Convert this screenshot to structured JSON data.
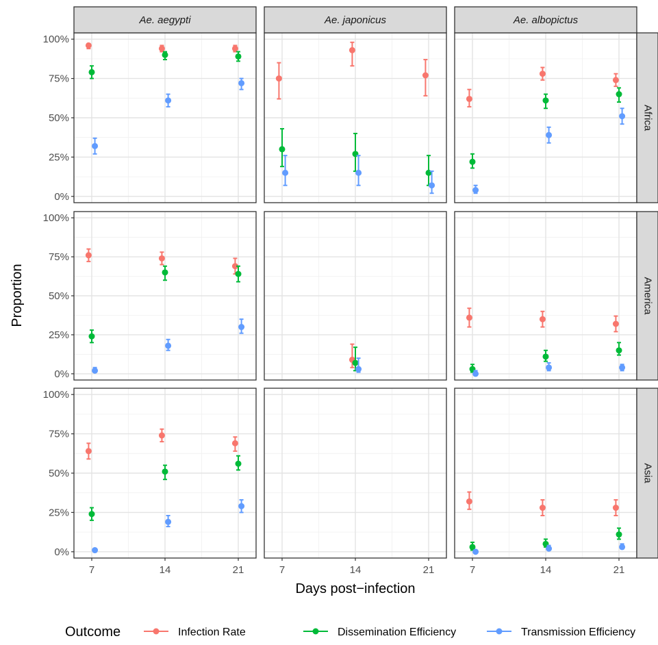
{
  "chart_data": {
    "type": "scatter",
    "xlabel": "Days post−infection",
    "ylabel": "Proportion",
    "x_ticks": [
      "7",
      "14",
      "21"
    ],
    "y_ticks": [
      "0%",
      "25%",
      "50%",
      "75%",
      "100%"
    ],
    "x_range": [
      5.3,
      22.7
    ],
    "y_range": [
      -0.04,
      1.04
    ],
    "columns": [
      "Ae. aegypti",
      "Ae. japonicus",
      "Ae. albopictus"
    ],
    "rows": [
      "Africa",
      "America",
      "Asia"
    ],
    "legend": {
      "title": "Outcome",
      "position": "bottom",
      "entries": [
        "Infection Rate",
        "Dissemination Efficiency",
        "Transmission Efficiency"
      ]
    },
    "series": [
      {
        "name": "Infection Rate",
        "color": "#F8766D",
        "offset": -0.3
      },
      {
        "name": "Dissemination Efficiency",
        "color": "#00BA38",
        "offset": 0
      },
      {
        "name": "Transmission Efficiency",
        "color": "#619CFF",
        "offset": 0.3
      }
    ],
    "grid": true,
    "panels": [
      {
        "col": 0,
        "row": 0,
        "points": [
          {
            "series": 0,
            "x": 7,
            "y": 0.96,
            "lo": 0.94,
            "hi": 0.97
          },
          {
            "series": 1,
            "x": 7,
            "y": 0.79,
            "lo": 0.75,
            "hi": 0.83
          },
          {
            "series": 2,
            "x": 7,
            "y": 0.32,
            "lo": 0.27,
            "hi": 0.37
          },
          {
            "series": 0,
            "x": 14,
            "y": 0.94,
            "lo": 0.92,
            "hi": 0.96
          },
          {
            "series": 1,
            "x": 14,
            "y": 0.9,
            "lo": 0.87,
            "hi": 0.92
          },
          {
            "series": 2,
            "x": 14,
            "y": 0.61,
            "lo": 0.57,
            "hi": 0.65
          },
          {
            "series": 0,
            "x": 21,
            "y": 0.94,
            "lo": 0.92,
            "hi": 0.96
          },
          {
            "series": 1,
            "x": 21,
            "y": 0.89,
            "lo": 0.86,
            "hi": 0.92
          },
          {
            "series": 2,
            "x": 21,
            "y": 0.72,
            "lo": 0.68,
            "hi": 0.75
          }
        ]
      },
      {
        "col": 1,
        "row": 0,
        "points": [
          {
            "series": 0,
            "x": 7,
            "y": 0.75,
            "lo": 0.62,
            "hi": 0.85
          },
          {
            "series": 1,
            "x": 7,
            "y": 0.3,
            "lo": 0.19,
            "hi": 0.43
          },
          {
            "series": 2,
            "x": 7,
            "y": 0.15,
            "lo": 0.07,
            "hi": 0.26
          },
          {
            "series": 0,
            "x": 14,
            "y": 0.93,
            "lo": 0.83,
            "hi": 0.98
          },
          {
            "series": 1,
            "x": 14,
            "y": 0.27,
            "lo": 0.16,
            "hi": 0.4
          },
          {
            "series": 2,
            "x": 14,
            "y": 0.15,
            "lo": 0.07,
            "hi": 0.26
          },
          {
            "series": 0,
            "x": 21,
            "y": 0.77,
            "lo": 0.64,
            "hi": 0.87
          },
          {
            "series": 1,
            "x": 21,
            "y": 0.15,
            "lo": 0.07,
            "hi": 0.26
          },
          {
            "series": 2,
            "x": 21,
            "y": 0.07,
            "lo": 0.02,
            "hi": 0.16
          }
        ]
      },
      {
        "col": 2,
        "row": 0,
        "points": [
          {
            "series": 0,
            "x": 7,
            "y": 0.62,
            "lo": 0.57,
            "hi": 0.68
          },
          {
            "series": 1,
            "x": 7,
            "y": 0.22,
            "lo": 0.18,
            "hi": 0.27
          },
          {
            "series": 2,
            "x": 7,
            "y": 0.04,
            "lo": 0.02,
            "hi": 0.07
          },
          {
            "series": 0,
            "x": 14,
            "y": 0.78,
            "lo": 0.74,
            "hi": 0.82
          },
          {
            "series": 1,
            "x": 14,
            "y": 0.61,
            "lo": 0.56,
            "hi": 0.65
          },
          {
            "series": 2,
            "x": 14,
            "y": 0.39,
            "lo": 0.34,
            "hi": 0.44
          },
          {
            "series": 0,
            "x": 21,
            "y": 0.74,
            "lo": 0.7,
            "hi": 0.78
          },
          {
            "series": 1,
            "x": 21,
            "y": 0.65,
            "lo": 0.6,
            "hi": 0.69
          },
          {
            "series": 2,
            "x": 21,
            "y": 0.51,
            "lo": 0.46,
            "hi": 0.56
          }
        ]
      },
      {
        "col": 0,
        "row": 1,
        "points": [
          {
            "series": 0,
            "x": 7,
            "y": 0.76,
            "lo": 0.72,
            "hi": 0.8
          },
          {
            "series": 1,
            "x": 7,
            "y": 0.24,
            "lo": 0.2,
            "hi": 0.28
          },
          {
            "series": 2,
            "x": 7,
            "y": 0.02,
            "lo": 0.01,
            "hi": 0.04
          },
          {
            "series": 0,
            "x": 14,
            "y": 0.74,
            "lo": 0.7,
            "hi": 0.78
          },
          {
            "series": 1,
            "x": 14,
            "y": 0.65,
            "lo": 0.6,
            "hi": 0.69
          },
          {
            "series": 2,
            "x": 14,
            "y": 0.18,
            "lo": 0.15,
            "hi": 0.22
          },
          {
            "series": 0,
            "x": 21,
            "y": 0.69,
            "lo": 0.64,
            "hi": 0.74
          },
          {
            "series": 1,
            "x": 21,
            "y": 0.64,
            "lo": 0.59,
            "hi": 0.69
          },
          {
            "series": 2,
            "x": 21,
            "y": 0.3,
            "lo": 0.26,
            "hi": 0.35
          }
        ]
      },
      {
        "col": 1,
        "row": 1,
        "points": [
          {
            "series": 0,
            "x": 14,
            "y": 0.09,
            "lo": 0.04,
            "hi": 0.19
          },
          {
            "series": 1,
            "x": 14,
            "y": 0.07,
            "lo": 0.02,
            "hi": 0.17
          },
          {
            "series": 2,
            "x": 14,
            "y": 0.03,
            "lo": 0.01,
            "hi": 0.1
          }
        ]
      },
      {
        "col": 2,
        "row": 1,
        "points": [
          {
            "series": 0,
            "x": 7,
            "y": 0.36,
            "lo": 0.3,
            "hi": 0.42
          },
          {
            "series": 1,
            "x": 7,
            "y": 0.03,
            "lo": 0.01,
            "hi": 0.06
          },
          {
            "series": 2,
            "x": 7,
            "y": 0.0,
            "lo": 0.0,
            "hi": 0.02
          },
          {
            "series": 0,
            "x": 14,
            "y": 0.35,
            "lo": 0.3,
            "hi": 0.4
          },
          {
            "series": 1,
            "x": 14,
            "y": 0.11,
            "lo": 0.08,
            "hi": 0.15
          },
          {
            "series": 2,
            "x": 14,
            "y": 0.04,
            "lo": 0.02,
            "hi": 0.07
          },
          {
            "series": 0,
            "x": 21,
            "y": 0.32,
            "lo": 0.27,
            "hi": 0.37
          },
          {
            "series": 1,
            "x": 21,
            "y": 0.15,
            "lo": 0.12,
            "hi": 0.2
          },
          {
            "series": 2,
            "x": 21,
            "y": 0.04,
            "lo": 0.02,
            "hi": 0.06
          }
        ]
      },
      {
        "col": 0,
        "row": 2,
        "points": [
          {
            "series": 0,
            "x": 7,
            "y": 0.64,
            "lo": 0.59,
            "hi": 0.69
          },
          {
            "series": 1,
            "x": 7,
            "y": 0.24,
            "lo": 0.2,
            "hi": 0.28
          },
          {
            "series": 2,
            "x": 7,
            "y": 0.01,
            "lo": 0.0,
            "hi": 0.02
          },
          {
            "series": 0,
            "x": 14,
            "y": 0.74,
            "lo": 0.7,
            "hi": 0.78
          },
          {
            "series": 1,
            "x": 14,
            "y": 0.51,
            "lo": 0.46,
            "hi": 0.55
          },
          {
            "series": 2,
            "x": 14,
            "y": 0.19,
            "lo": 0.16,
            "hi": 0.23
          },
          {
            "series": 0,
            "x": 21,
            "y": 0.69,
            "lo": 0.64,
            "hi": 0.73
          },
          {
            "series": 1,
            "x": 21,
            "y": 0.56,
            "lo": 0.52,
            "hi": 0.61
          },
          {
            "series": 2,
            "x": 21,
            "y": 0.29,
            "lo": 0.25,
            "hi": 0.33
          }
        ]
      },
      {
        "col": 1,
        "row": 2,
        "points": []
      },
      {
        "col": 2,
        "row": 2,
        "points": [
          {
            "series": 0,
            "x": 7,
            "y": 0.32,
            "lo": 0.27,
            "hi": 0.38
          },
          {
            "series": 1,
            "x": 7,
            "y": 0.03,
            "lo": 0.01,
            "hi": 0.06
          },
          {
            "series": 2,
            "x": 7,
            "y": 0.0,
            "lo": 0.0,
            "hi": 0.01
          },
          {
            "series": 0,
            "x": 14,
            "y": 0.28,
            "lo": 0.23,
            "hi": 0.33
          },
          {
            "series": 1,
            "x": 14,
            "y": 0.05,
            "lo": 0.03,
            "hi": 0.08
          },
          {
            "series": 2,
            "x": 14,
            "y": 0.02,
            "lo": 0.01,
            "hi": 0.04
          },
          {
            "series": 0,
            "x": 21,
            "y": 0.28,
            "lo": 0.23,
            "hi": 0.33
          },
          {
            "series": 1,
            "x": 21,
            "y": 0.11,
            "lo": 0.08,
            "hi": 0.15
          },
          {
            "series": 2,
            "x": 21,
            "y": 0.03,
            "lo": 0.02,
            "hi": 0.05
          }
        ]
      }
    ]
  }
}
